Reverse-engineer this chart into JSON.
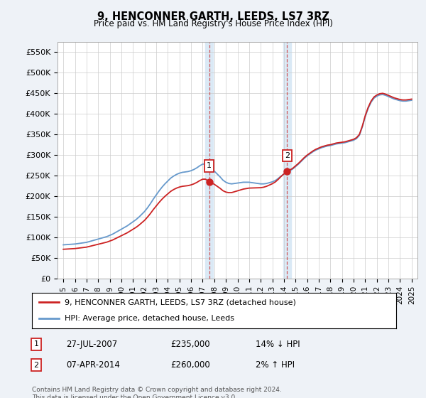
{
  "title": "9, HENCONNER GARTH, LEEDS, LS7 3RZ",
  "subtitle": "Price paid vs. HM Land Registry's House Price Index (HPI)",
  "ylabel_ticks": [
    "£0",
    "£50K",
    "£100K",
    "£150K",
    "£200K",
    "£250K",
    "£300K",
    "£350K",
    "£400K",
    "£450K",
    "£500K",
    "£550K"
  ],
  "ytick_values": [
    0,
    50000,
    100000,
    150000,
    200000,
    250000,
    300000,
    350000,
    400000,
    450000,
    500000,
    550000
  ],
  "ylim": [
    0,
    575000
  ],
  "xlim_start": 1994.5,
  "xlim_end": 2025.5,
  "hpi_color": "#6699cc",
  "price_color": "#cc2222",
  "background_color": "#eef2f7",
  "plot_bg_color": "#ffffff",
  "grid_color": "#cccccc",
  "sale1_x": 2007.57,
  "sale1_y": 235000,
  "sale2_x": 2014.27,
  "sale2_y": 260000,
  "legend_line1": "9, HENCONNER GARTH, LEEDS, LS7 3RZ (detached house)",
  "legend_line2": "HPI: Average price, detached house, Leeds",
  "table_row1": [
    "1",
    "27-JUL-2007",
    "£235,000",
    "14% ↓ HPI"
  ],
  "table_row2": [
    "2",
    "07-APR-2014",
    "£260,000",
    "2% ↑ HPI"
  ],
  "footnote": "Contains HM Land Registry data © Crown copyright and database right 2024.\nThis data is licensed under the Open Government Licence v3.0.",
  "xtick_years": [
    1995,
    1996,
    1997,
    1998,
    1999,
    2000,
    2001,
    2002,
    2003,
    2004,
    2005,
    2006,
    2007,
    2008,
    2009,
    2010,
    2011,
    2012,
    2013,
    2014,
    2015,
    2016,
    2017,
    2018,
    2019,
    2020,
    2021,
    2022,
    2023,
    2024,
    2025
  ],
  "years_hpi": [
    1995.0,
    1995.25,
    1995.5,
    1995.75,
    1996.0,
    1996.25,
    1996.5,
    1996.75,
    1997.0,
    1997.25,
    1997.5,
    1997.75,
    1998.0,
    1998.25,
    1998.5,
    1998.75,
    1999.0,
    1999.25,
    1999.5,
    1999.75,
    2000.0,
    2000.25,
    2000.5,
    2000.75,
    2001.0,
    2001.25,
    2001.5,
    2001.75,
    2002.0,
    2002.25,
    2002.5,
    2002.75,
    2003.0,
    2003.25,
    2003.5,
    2003.75,
    2004.0,
    2004.25,
    2004.5,
    2004.75,
    2005.0,
    2005.25,
    2005.5,
    2005.75,
    2006.0,
    2006.25,
    2006.5,
    2006.75,
    2007.0,
    2007.25,
    2007.5,
    2007.75,
    2008.0,
    2008.25,
    2008.5,
    2008.75,
    2009.0,
    2009.25,
    2009.5,
    2009.75,
    2010.0,
    2010.25,
    2010.5,
    2010.75,
    2011.0,
    2011.25,
    2011.5,
    2011.75,
    2012.0,
    2012.25,
    2012.5,
    2012.75,
    2013.0,
    2013.25,
    2013.5,
    2013.75,
    2014.0,
    2014.25,
    2014.5,
    2014.75,
    2015.0,
    2015.25,
    2015.5,
    2015.75,
    2016.0,
    2016.25,
    2016.5,
    2016.75,
    2017.0,
    2017.25,
    2017.5,
    2017.75,
    2018.0,
    2018.25,
    2018.5,
    2018.75,
    2019.0,
    2019.25,
    2019.5,
    2019.75,
    2020.0,
    2020.25,
    2020.5,
    2020.75,
    2021.0,
    2021.25,
    2021.5,
    2021.75,
    2022.0,
    2022.25,
    2022.5,
    2022.75,
    2023.0,
    2023.25,
    2023.5,
    2023.75,
    2024.0,
    2024.25,
    2024.5,
    2024.75,
    2025.0
  ],
  "hpi_values": [
    82000,
    82500,
    83000,
    83500,
    84000,
    85000,
    86000,
    87000,
    88000,
    90000,
    92000,
    94000,
    96000,
    98000,
    100000,
    102000,
    105000,
    108000,
    112000,
    116000,
    120000,
    124000,
    128000,
    133000,
    138000,
    143000,
    149000,
    156000,
    163000,
    172000,
    182000,
    193000,
    203000,
    213000,
    222000,
    230000,
    237000,
    244000,
    249000,
    253000,
    256000,
    258000,
    259000,
    260000,
    262000,
    265000,
    269000,
    274000,
    278000,
    278000,
    272000,
    267000,
    261000,
    254000,
    247000,
    239000,
    234000,
    231000,
    230000,
    231000,
    232000,
    233000,
    234000,
    234000,
    234000,
    233000,
    232000,
    231000,
    230000,
    230000,
    231000,
    233000,
    235000,
    238000,
    243000,
    249000,
    254000,
    258000,
    262000,
    266000,
    272000,
    278000,
    285000,
    292000,
    298000,
    303000,
    308000,
    312000,
    315000,
    318000,
    320000,
    322000,
    323000,
    325000,
    327000,
    328000,
    329000,
    330000,
    332000,
    334000,
    336000,
    340000,
    348000,
    368000,
    393000,
    413000,
    428000,
    438000,
    443000,
    446000,
    447000,
    445000,
    442000,
    439000,
    436000,
    434000,
    432000,
    431000,
    431000,
    432000,
    433000
  ]
}
